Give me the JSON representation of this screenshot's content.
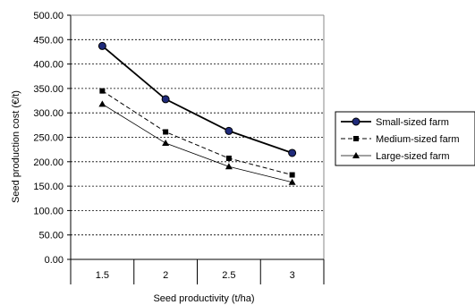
{
  "chart_data": {
    "type": "line",
    "title": "",
    "xlabel": "Seed productivity (t/ha)",
    "ylabel": "Seed production cost (€/t)",
    "categories": [
      "1.5",
      "2",
      "2.5",
      "3"
    ],
    "ylim": [
      0,
      500
    ],
    "yticks": [
      "0.00",
      "50.00",
      "100.00",
      "150.00",
      "200.00",
      "250.00",
      "300.00",
      "350.00",
      "400.00",
      "450.00",
      "500.00"
    ],
    "grid": "horizontal dashed",
    "legend_position": "right",
    "series": [
      {
        "name": "Small-sized farm",
        "values": [
          437,
          328,
          263,
          218
        ],
        "color": "#000000",
        "marker": "circle",
        "marker_fill": "#1f2a7a",
        "dash": "solid",
        "width": 1.8
      },
      {
        "name": "Medium-sized farm",
        "values": [
          345,
          261,
          207,
          173
        ],
        "color": "#000000",
        "marker": "square",
        "marker_fill": "#000000",
        "dash": "dashed",
        "width": 1
      },
      {
        "name": "Large-sized farm",
        "values": [
          318,
          238,
          190,
          158
        ],
        "color": "#000000",
        "marker": "triangle",
        "marker_fill": "#000000",
        "dash": "solid",
        "width": 0.8
      }
    ]
  }
}
